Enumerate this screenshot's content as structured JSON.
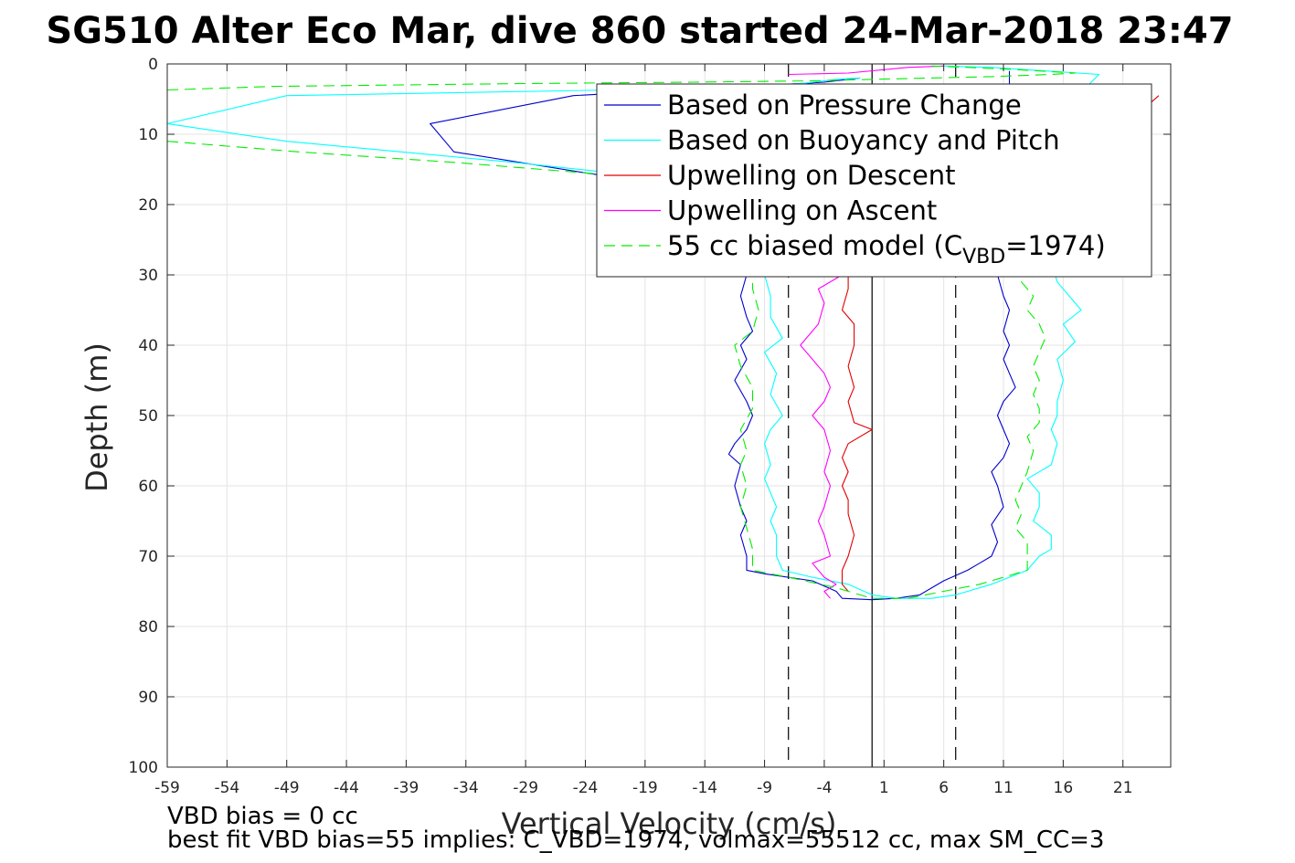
{
  "chart_data": {
    "type": "line",
    "title": "SG510 Alter Eco Mar, dive 860 started 24-Mar-2018 23:47",
    "xlabel": "Vertical Velocity (cm/s)",
    "ylabel": "Depth (m)",
    "xlim": [
      -59,
      25
    ],
    "ylim": [
      0,
      100
    ],
    "y_reversed": true,
    "grid": true,
    "xticks": [
      -59,
      -54,
      -49,
      -44,
      -39,
      -34,
      -29,
      -24,
      -19,
      -14,
      -9,
      -4,
      1,
      6,
      11,
      16,
      21
    ],
    "yticks": [
      0,
      10,
      20,
      30,
      40,
      50,
      60,
      70,
      80,
      90,
      100
    ],
    "legend_position": "top-right",
    "legend": [
      {
        "label": "Based on Pressure Change",
        "color": "#0000cc",
        "style": "solid",
        "series": 0
      },
      {
        "label": "Based on Buoyancy and Pitch",
        "color": "#00ffff",
        "style": "solid",
        "series": 1
      },
      {
        "label": "Upwelling on Descent",
        "color": "#e00000",
        "style": "solid",
        "series": 2
      },
      {
        "label": "Upwelling on Ascent",
        "color": "#ff00ff",
        "style": "solid",
        "series": 3
      },
      {
        "label_main": "55 cc biased model (C",
        "label_sub": "VBD",
        "label_end": "=1974)",
        "color": "#00ee00",
        "style": "dashed",
        "series": 4
      }
    ],
    "reference_lines": [
      {
        "x": -7,
        "style": "dashed",
        "color": "#000000"
      },
      {
        "x": 0,
        "style": "solid",
        "color": "#000000"
      },
      {
        "x": 7,
        "style": "dashed",
        "color": "#000000"
      }
    ],
    "series": [
      {
        "color": "#0000cc",
        "style": "solid",
        "segments": [
          [
            [
              -1,
              2
            ],
            [
              -2,
              2.2
            ],
            [
              -4,
              2.6
            ],
            [
              -25,
              4.5
            ],
            [
              -37,
              8.5
            ],
            [
              -35,
              12.5
            ],
            [
              -24,
              15.5
            ],
            [
              -20,
              16.5
            ],
            [
              -16,
              17.5
            ],
            [
              -13,
              18.5
            ],
            [
              -12,
              20
            ],
            [
              -11,
              22
            ],
            [
              -10.5,
              25
            ],
            [
              -10.8,
              28
            ],
            [
              -10.5,
              30
            ],
            [
              -11,
              33
            ],
            [
              -10.5,
              36
            ],
            [
              -10,
              38
            ],
            [
              -11,
              40
            ],
            [
              -10.5,
              42
            ],
            [
              -11.5,
              45
            ],
            [
              -10.5,
              48
            ],
            [
              -10,
              50
            ],
            [
              -10.5,
              52
            ],
            [
              -11.5,
              54
            ],
            [
              -12,
              55.5
            ],
            [
              -11,
              57
            ],
            [
              -11.5,
              60
            ],
            [
              -11,
              63
            ],
            [
              -10.5,
              65
            ],
            [
              -11,
              67
            ],
            [
              -10.5,
              70
            ],
            [
              -10.5,
              72
            ],
            [
              -9,
              72.5
            ],
            [
              -5,
              73.5
            ],
            [
              -3,
              75
            ],
            [
              -2.5,
              76
            ],
            [
              0,
              76.2
            ],
            [
              2,
              76
            ],
            [
              4,
              75.5
            ],
            [
              5,
              74.5
            ],
            [
              6,
              73.5
            ],
            [
              8,
              72
            ],
            [
              9,
              71
            ],
            [
              10,
              70
            ],
            [
              10.5,
              68
            ],
            [
              10,
              65.5
            ],
            [
              11,
              63
            ],
            [
              10.5,
              60
            ],
            [
              10,
              58
            ],
            [
              11,
              56
            ],
            [
              11.5,
              54
            ],
            [
              11,
              52
            ],
            [
              10.5,
              50
            ],
            [
              11,
              48
            ],
            [
              12,
              46
            ],
            [
              11.5,
              44
            ],
            [
              11,
              42
            ],
            [
              11.5,
              40
            ],
            [
              11,
              38
            ],
            [
              11.5,
              35
            ],
            [
              11,
              33
            ],
            [
              10.5,
              30
            ],
            [
              10.5,
              25
            ],
            [
              10,
              22
            ],
            [
              10.5,
              18
            ],
            [
              11,
              14
            ],
            [
              11,
              10
            ],
            [
              11,
              7
            ],
            [
              11.5,
              4
            ],
            [
              11.5,
              1
            ]
          ]
        ]
      },
      {
        "color": "#00ffff",
        "style": "solid",
        "segments": [
          [
            [
              -1,
              2
            ],
            [
              -3,
              2.2
            ],
            [
              -6,
              2.8
            ],
            [
              -15,
              3.5
            ],
            [
              -49,
              4.5
            ],
            [
              -59,
              8.5
            ],
            [
              -49,
              11
            ],
            [
              -30,
              14
            ],
            [
              -20,
              15.8
            ],
            [
              -14,
              17
            ],
            [
              -11,
              19
            ],
            [
              -10,
              22
            ],
            [
              -9,
              25
            ],
            [
              -9,
              28
            ],
            [
              -9,
              30
            ],
            [
              -8.5,
              33
            ],
            [
              -8.5,
              36
            ],
            [
              -7.5,
              39
            ],
            [
              -9,
              41
            ],
            [
              -8,
              44
            ],
            [
              -8.5,
              47
            ],
            [
              -7.5,
              50
            ],
            [
              -8.5,
              52
            ],
            [
              -9,
              54
            ],
            [
              -8.5,
              57
            ],
            [
              -9,
              59
            ],
            [
              -8.5,
              61
            ],
            [
              -8,
              63
            ],
            [
              -8.5,
              65
            ],
            [
              -8,
              67
            ],
            [
              -8,
              70
            ],
            [
              -7.5,
              72
            ],
            [
              -5,
              73
            ],
            [
              -2,
              74
            ],
            [
              0,
              75.5
            ],
            [
              2,
              76
            ],
            [
              5,
              76
            ],
            [
              7,
              75.5
            ],
            [
              10,
              74
            ],
            [
              13,
              72
            ],
            [
              14,
              70
            ],
            [
              15,
              69
            ],
            [
              15,
              67
            ],
            [
              13.5,
              65
            ],
            [
              14,
              63
            ],
            [
              14,
              61
            ],
            [
              13,
              59
            ],
            [
              15,
              57
            ],
            [
              15.5,
              54
            ],
            [
              15,
              52
            ],
            [
              15.5,
              50
            ],
            [
              15.5,
              48
            ],
            [
              16,
              45
            ],
            [
              15.5,
              42
            ],
            [
              17,
              39.5
            ],
            [
              16,
              37
            ],
            [
              17.5,
              35
            ],
            [
              16.5,
              33
            ],
            [
              15.5,
              31
            ],
            [
              15,
              28
            ],
            [
              15,
              25
            ],
            [
              14.5,
              22
            ],
            [
              15,
              18
            ],
            [
              16,
              12
            ],
            [
              17,
              7
            ],
            [
              17.5,
              4
            ],
            [
              19,
              1.5
            ],
            [
              10,
              0.5
            ],
            [
              6,
              0.3
            ]
          ]
        ]
      },
      {
        "color": "#e00000",
        "style": "solid",
        "segments": [
          [
            [
              -2,
              28
            ],
            [
              -2,
              32
            ],
            [
              -2.5,
              35
            ],
            [
              -1.5,
              37
            ],
            [
              -1.5,
              40
            ],
            [
              -2,
              43
            ],
            [
              -1.5,
              46
            ],
            [
              -2,
              48
            ],
            [
              -1.5,
              51
            ],
            [
              0,
              52
            ],
            [
              -2,
              54
            ],
            [
              -2.5,
              56
            ],
            [
              -2,
              58
            ],
            [
              -2.5,
              60
            ],
            [
              -2,
              62
            ],
            [
              -2,
              64
            ],
            [
              -1.5,
              67
            ],
            [
              -2,
              70
            ],
            [
              -2.5,
              72
            ],
            [
              -2.5,
              74
            ],
            [
              -2,
              75
            ]
          ],
          [
            [
              24,
              4.5
            ],
            [
              23,
              6
            ],
            [
              22,
              7.5
            ]
          ]
        ]
      },
      {
        "color": "#ff00ff",
        "style": "solid",
        "segments": [
          [
            [
              -7,
              1.5
            ],
            [
              -2,
              1.3
            ],
            [
              3,
              0.5
            ],
            [
              6,
              0.3
            ]
          ],
          [
            [
              -2.5,
              30
            ],
            [
              -4.5,
              32
            ],
            [
              -4,
              34
            ],
            [
              -4.5,
              37
            ],
            [
              -6,
              40
            ],
            [
              -5,
              42
            ],
            [
              -4,
              44
            ],
            [
              -3.5,
              46
            ],
            [
              -4,
              48
            ],
            [
              -5,
              50
            ],
            [
              -4,
              52
            ],
            [
              -3.5,
              55
            ],
            [
              -4,
              58
            ],
            [
              -3.5,
              60
            ],
            [
              -4,
              63
            ],
            [
              -4.5,
              65
            ],
            [
              -4,
              67
            ],
            [
              -3.5,
              70
            ],
            [
              -5,
              71
            ],
            [
              -4,
              73
            ],
            [
              -3,
              74
            ],
            [
              -4,
              75
            ],
            [
              -3.5,
              76
            ]
          ]
        ]
      },
      {
        "color": "#00ee00",
        "style": "dashed",
        "segments": [
          [
            [
              -59,
              3.7
            ],
            [
              -50,
              3.2
            ],
            [
              -30,
              2.8
            ],
            [
              -15,
              2.6
            ],
            [
              -5,
              2.4
            ],
            [
              0,
              2.2
            ],
            [
              5,
              2.0
            ],
            [
              10,
              1.8
            ],
            [
              15,
              1.5
            ],
            [
              17,
              1.3
            ],
            [
              12,
              0.8
            ],
            [
              8,
              0.5
            ],
            [
              5,
              0.3
            ]
          ],
          [
            [
              -59,
              11
            ],
            [
              -48,
              12.5
            ],
            [
              -35,
              14
            ],
            [
              -24,
              15.5
            ],
            [
              -18,
              16.5
            ],
            [
              -13,
              18
            ],
            [
              -11,
              20
            ],
            [
              -10.5,
              23
            ],
            [
              -10.5,
              26
            ],
            [
              -10,
              29
            ],
            [
              -10,
              32
            ],
            [
              -9.5,
              35
            ],
            [
              -10,
              38
            ],
            [
              -11.5,
              40
            ],
            [
              -11,
              43
            ],
            [
              -10,
              46
            ],
            [
              -10,
              49
            ],
            [
              -11,
              52
            ],
            [
              -10.5,
              55
            ],
            [
              -11,
              57
            ],
            [
              -10.5,
              60
            ],
            [
              -11,
              63
            ],
            [
              -10.5,
              66
            ],
            [
              -10,
              69
            ],
            [
              -10,
              72
            ],
            [
              -7,
              73
            ],
            [
              -3,
              74.5
            ],
            [
              0,
              76
            ],
            [
              3,
              76
            ],
            [
              6,
              75
            ],
            [
              9,
              74
            ],
            [
              11,
              73
            ],
            [
              13,
              72
            ],
            [
              13,
              70
            ],
            [
              13,
              68
            ],
            [
              12,
              66
            ],
            [
              12.5,
              64
            ],
            [
              12,
              62
            ],
            [
              12.5,
              60
            ],
            [
              13,
              58
            ],
            [
              13.5,
              55
            ],
            [
              13,
              53
            ],
            [
              14,
              51
            ],
            [
              14,
              49
            ],
            [
              13.5,
              47
            ],
            [
              14,
              45
            ],
            [
              13.5,
              43
            ],
            [
              14,
              41
            ],
            [
              14.5,
              39
            ],
            [
              14,
              37
            ],
            [
              13,
              35
            ],
            [
              13.5,
              33
            ],
            [
              12.5,
              31
            ],
            [
              12.5,
              28
            ],
            [
              12,
              25
            ]
          ]
        ]
      }
    ],
    "footer": {
      "line1": "VBD bias = 0 cc",
      "line2": "best fit VBD bias=55 implies: C_VBD=1974, volmax=55512 cc, max SM_CC=3"
    }
  }
}
